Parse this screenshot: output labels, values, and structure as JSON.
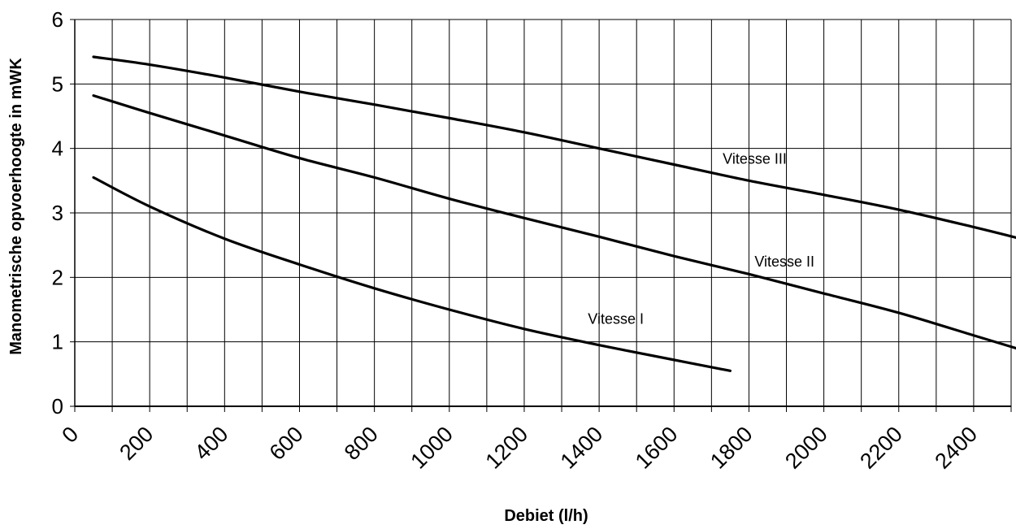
{
  "chart_data": {
    "type": "line",
    "title": "",
    "xlabel": "Debiet (l/h)",
    "ylabel": "Manometrische opvoerhoogte in mWK",
    "xlim": [
      0,
      2500
    ],
    "ylim": [
      0,
      6
    ],
    "grid": true,
    "x_ticks": [
      0,
      200,
      400,
      600,
      800,
      1000,
      1200,
      1400,
      1600,
      1800,
      2000,
      2200,
      2400
    ],
    "x_tick_labels": [
      "0",
      "200",
      "400",
      "600",
      "800",
      "1000",
      "1200",
      "1400",
      "1600",
      "1800",
      "2000",
      "2200",
      "2400"
    ],
    "y_ticks": [
      0,
      1,
      2,
      3,
      4,
      5,
      6
    ],
    "y_tick_labels": [
      "0",
      "1",
      "2",
      "3",
      "4",
      "5",
      "6"
    ],
    "series": [
      {
        "name": "Vitesse I",
        "label": "Vitesse I",
        "x": [
          50,
          200,
          400,
          600,
          800,
          1000,
          1200,
          1400,
          1600,
          1750
        ],
        "y": [
          3.55,
          3.1,
          2.6,
          2.2,
          1.83,
          1.5,
          1.2,
          0.95,
          0.72,
          0.55
        ]
      },
      {
        "name": "Vitesse II",
        "label": "Vitesse II",
        "x": [
          50,
          200,
          400,
          600,
          800,
          1000,
          1200,
          1400,
          1600,
          1800,
          2000,
          2200,
          2400,
          2525
        ],
        "y": [
          4.82,
          4.55,
          4.2,
          3.85,
          3.55,
          3.22,
          2.92,
          2.63,
          2.33,
          2.05,
          1.75,
          1.45,
          1.1,
          0.88
        ]
      },
      {
        "name": "Vitesse III",
        "label": "Vitesse III",
        "x": [
          50,
          200,
          400,
          600,
          800,
          1000,
          1200,
          1400,
          1600,
          1800,
          2000,
          2200,
          2400,
          2525
        ],
        "y": [
          5.42,
          5.3,
          5.1,
          4.88,
          4.68,
          4.47,
          4.25,
          4.0,
          3.75,
          3.5,
          3.28,
          3.05,
          2.78,
          2.6
        ]
      }
    ]
  }
}
